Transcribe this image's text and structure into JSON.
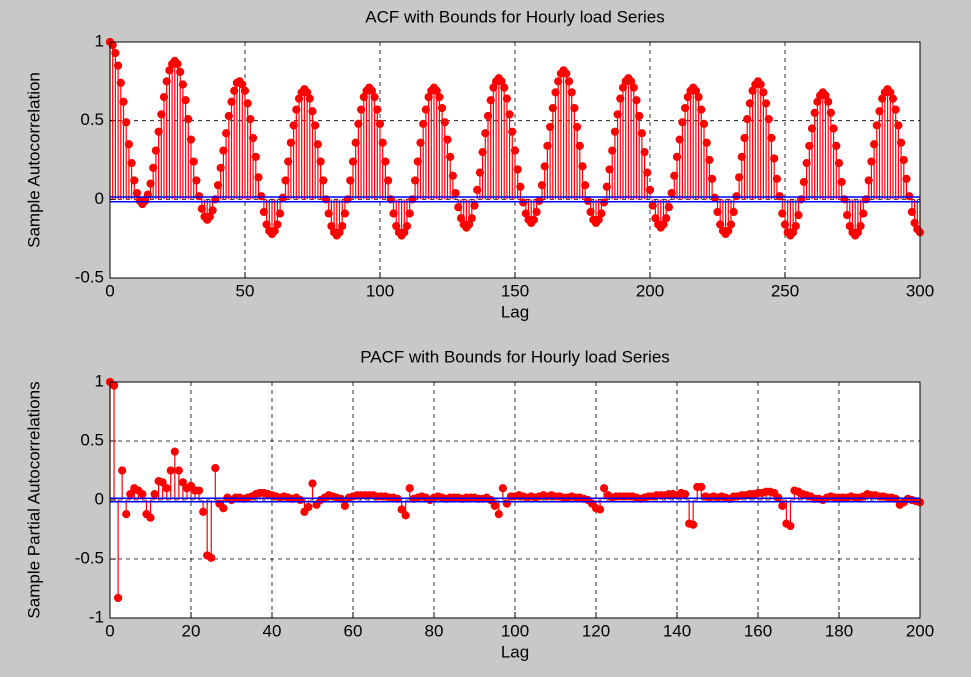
{
  "chart_data": [
    {
      "type": "stem",
      "title": "ACF with Bounds for Hourly load Series",
      "xlabel": "Lag",
      "ylabel": "Sample Autocorrelation",
      "color": "#ff0000",
      "bound_color": "#0000ff",
      "bounds": [
        0.015,
        -0.015
      ],
      "grid": true,
      "xlim": [
        0,
        300
      ],
      "ylim": [
        -0.5,
        1
      ],
      "xticks": [
        0,
        50,
        100,
        150,
        200,
        250,
        300
      ],
      "yticks": [
        -0.5,
        0,
        0.5,
        1
      ],
      "x": [
        0,
        1,
        2,
        3,
        4,
        5,
        6,
        7,
        8,
        9,
        10,
        11,
        12,
        13,
        14,
        15,
        16,
        17,
        18,
        19,
        20,
        21,
        22,
        23,
        24,
        25,
        26,
        27,
        28,
        29,
        30,
        31,
        32,
        33,
        34,
        35,
        36,
        37,
        38,
        39,
        40,
        41,
        42,
        43,
        44,
        45,
        46,
        47,
        48,
        49,
        50,
        51,
        52,
        53,
        54,
        55,
        56,
        57,
        58,
        59,
        60,
        61,
        62,
        63,
        64,
        65,
        66,
        67,
        68,
        69,
        70,
        71,
        72,
        73,
        74,
        75,
        76,
        77,
        78,
        79,
        80,
        81,
        82,
        83,
        84,
        85,
        86,
        87,
        88,
        89,
        90,
        91,
        92,
        93,
        94,
        95,
        96,
        97,
        98,
        99,
        100,
        101,
        102,
        103,
        104,
        105,
        106,
        107,
        108,
        109,
        110,
        111,
        112,
        113,
        114,
        115,
        116,
        117,
        118,
        119,
        120,
        121,
        122,
        123,
        124,
        125,
        126,
        127,
        128,
        129,
        130,
        131,
        132,
        133,
        134,
        135,
        136,
        137,
        138,
        139,
        140,
        141,
        142,
        143,
        144,
        145,
        146,
        147,
        148,
        149,
        150,
        151,
        152,
        153,
        154,
        155,
        156,
        157,
        158,
        159,
        160,
        161,
        162,
        163,
        164,
        165,
        166,
        167,
        168,
        169,
        170,
        171,
        172,
        173,
        174,
        175,
        176,
        177,
        178,
        179,
        180,
        181,
        182,
        183,
        184,
        185,
        186,
        187,
        188,
        189,
        190,
        191,
        192,
        193,
        194,
        195,
        196,
        197,
        198,
        199,
        200,
        201,
        202,
        203,
        204,
        205,
        206,
        207,
        208,
        209,
        210,
        211,
        212,
        213,
        214,
        215,
        216,
        217,
        218,
        219,
        220,
        221,
        222,
        223,
        224,
        225,
        226,
        227,
        228,
        229,
        230,
        231,
        232,
        233,
        234,
        235,
        236,
        237,
        238,
        239,
        240,
        241,
        242,
        243,
        244,
        245,
        246,
        247,
        248,
        249,
        250,
        251,
        252,
        253,
        254,
        255,
        256,
        257,
        258,
        259,
        260,
        261,
        262,
        263,
        264,
        265,
        266,
        267,
        268,
        269,
        270,
        271,
        272,
        273,
        274,
        275,
        276,
        277,
        278,
        279,
        280,
        281,
        282,
        283,
        284,
        285,
        286,
        287,
        288,
        289,
        290,
        291,
        292,
        293,
        294,
        295,
        296,
        297,
        298,
        299,
        300
      ],
      "values": [
        1,
        0.98,
        0.93,
        0.85,
        0.74,
        0.62,
        0.49,
        0.35,
        0.23,
        0.12,
        0.04,
        -0.01,
        -0.03,
        -0.01,
        0.03,
        0.1,
        0.2,
        0.31,
        0.43,
        0.54,
        0.65,
        0.75,
        0.82,
        0.86,
        0.88,
        0.86,
        0.81,
        0.73,
        0.63,
        0.51,
        0.38,
        0.24,
        0.12,
        0.02,
        -0.06,
        -0.11,
        -0.13,
        -0.11,
        -0.07,
        0,
        0.09,
        0.2,
        0.31,
        0.42,
        0.53,
        0.62,
        0.69,
        0.74,
        0.75,
        0.73,
        0.69,
        0.61,
        0.51,
        0.39,
        0.27,
        0.14,
        0.02,
        -0.08,
        -0.16,
        -0.2,
        -0.22,
        -0.2,
        -0.16,
        -0.09,
        0.01,
        0.12,
        0.24,
        0.36,
        0.47,
        0.57,
        0.64,
        0.68,
        0.7,
        0.68,
        0.64,
        0.56,
        0.47,
        0.35,
        0.24,
        0.12,
        0,
        -0.09,
        -0.17,
        -0.21,
        -0.23,
        -0.21,
        -0.17,
        -0.09,
        0,
        0.12,
        0.24,
        0.36,
        0.48,
        0.57,
        0.65,
        0.69,
        0.71,
        0.69,
        0.65,
        0.57,
        0.48,
        0.36,
        0.24,
        0.12,
        0,
        -0.09,
        -0.17,
        -0.21,
        -0.23,
        -0.21,
        -0.17,
        -0.09,
        0,
        0.12,
        0.24,
        0.36,
        0.48,
        0.57,
        0.65,
        0.69,
        0.71,
        0.69,
        0.65,
        0.58,
        0.49,
        0.38,
        0.27,
        0.15,
        0.04,
        -0.05,
        -0.12,
        -0.16,
        -0.18,
        -0.16,
        -0.12,
        -0.04,
        0.06,
        0.17,
        0.3,
        0.42,
        0.53,
        0.63,
        0.71,
        0.75,
        0.77,
        0.75,
        0.71,
        0.64,
        0.54,
        0.43,
        0.31,
        0.19,
        0.08,
        -0.02,
        -0.09,
        -0.13,
        -0.15,
        -0.13,
        -0.08,
        -0.01,
        0.09,
        0.21,
        0.34,
        0.46,
        0.58,
        0.68,
        0.75,
        0.8,
        0.82,
        0.8,
        0.75,
        0.68,
        0.58,
        0.46,
        0.34,
        0.21,
        0.09,
        -0.01,
        -0.08,
        -0.13,
        -0.15,
        -0.13,
        -0.09,
        -0.02,
        0.08,
        0.19,
        0.31,
        0.43,
        0.54,
        0.64,
        0.71,
        0.75,
        0.77,
        0.75,
        0.71,
        0.63,
        0.53,
        0.42,
        0.3,
        0.17,
        0.06,
        -0.04,
        -0.12,
        -0.16,
        -0.18,
        -0.16,
        -0.12,
        -0.05,
        0.04,
        0.15,
        0.27,
        0.38,
        0.49,
        0.58,
        0.65,
        0.69,
        0.71,
        0.69,
        0.65,
        0.57,
        0.48,
        0.36,
        0.25,
        0.13,
        0.01,
        -0.08,
        -0.16,
        -0.2,
        -0.22,
        -0.2,
        -0.16,
        -0.08,
        0.02,
        0.14,
        0.27,
        0.39,
        0.51,
        0.61,
        0.69,
        0.73,
        0.75,
        0.73,
        0.68,
        0.61,
        0.51,
        0.39,
        0.26,
        0.13,
        0.02,
        -0.09,
        -0.16,
        -0.21,
        -0.23,
        -0.21,
        -0.17,
        -0.1,
        0,
        0.11,
        0.23,
        0.34,
        0.45,
        0.55,
        0.62,
        0.66,
        0.68,
        0.66,
        0.62,
        0.55,
        0.45,
        0.34,
        0.23,
        0.11,
        0,
        -0.1,
        -0.17,
        -0.21,
        -0.23,
        -0.21,
        -0.17,
        -0.09,
        0,
        0.12,
        0.24,
        0.35,
        0.47,
        0.56,
        0.64,
        0.68,
        0.7,
        0.68,
        0.64,
        0.57,
        0.47,
        0.36,
        0.25,
        0.13,
        0.02,
        -0.08,
        -0.15,
        -0.19,
        -0.21
      ]
    },
    {
      "type": "stem",
      "title": "PACF with Bounds for Hourly load Series",
      "xlabel": "Lag",
      "ylabel": "Sample Partial Autocorrelations",
      "color": "#ff0000",
      "bound_color": "#0000ff",
      "bounds": [
        0.015,
        -0.015
      ],
      "grid": true,
      "xlim": [
        0,
        200
      ],
      "ylim": [
        -1,
        1
      ],
      "xticks": [
        0,
        20,
        40,
        60,
        80,
        100,
        120,
        140,
        160,
        180,
        200
      ],
      "yticks": [
        -1,
        -0.5,
        0,
        0.5,
        1
      ],
      "x": [
        0,
        1,
        2,
        3,
        4,
        5,
        6,
        7,
        8,
        9,
        10,
        11,
        12,
        13,
        14,
        15,
        16,
        17,
        18,
        19,
        20,
        21,
        22,
        23,
        24,
        25,
        26,
        27,
        28,
        29,
        30,
        31,
        32,
        33,
        34,
        35,
        36,
        37,
        38,
        39,
        40,
        41,
        42,
        43,
        44,
        45,
        46,
        47,
        48,
        49,
        50,
        51,
        52,
        53,
        54,
        55,
        56,
        57,
        58,
        59,
        60,
        61,
        62,
        63,
        64,
        65,
        66,
        67,
        68,
        69,
        70,
        71,
        72,
        73,
        74,
        75,
        76,
        77,
        78,
        79,
        80,
        81,
        82,
        83,
        84,
        85,
        86,
        87,
        88,
        89,
        90,
        91,
        92,
        93,
        94,
        95,
        96,
        97,
        98,
        99,
        100,
        101,
        102,
        103,
        104,
        105,
        106,
        107,
        108,
        109,
        110,
        111,
        112,
        113,
        114,
        115,
        116,
        117,
        118,
        119,
        120,
        121,
        122,
        123,
        124,
        125,
        126,
        127,
        128,
        129,
        130,
        131,
        132,
        133,
        134,
        135,
        136,
        137,
        138,
        139,
        140,
        141,
        142,
        143,
        144,
        145,
        146,
        147,
        148,
        149,
        150,
        151,
        152,
        153,
        154,
        155,
        156,
        157,
        158,
        159,
        160,
        161,
        162,
        163,
        164,
        165,
        166,
        167,
        168,
        169,
        170,
        171,
        172,
        173,
        174,
        175,
        176,
        177,
        178,
        179,
        180,
        181,
        182,
        183,
        184,
        185,
        186,
        187,
        188,
        189,
        190,
        191,
        192,
        193,
        194,
        195,
        196,
        197,
        198,
        199,
        200
      ],
      "values": [
        1,
        0.97,
        -0.83,
        0.25,
        -0.12,
        0.05,
        0.1,
        0.08,
        0.05,
        -0.12,
        -0.15,
        0.05,
        0.16,
        0.15,
        0.1,
        0.25,
        0.41,
        0.25,
        0.15,
        0.1,
        0.12,
        0.08,
        0.08,
        -0.1,
        -0.47,
        -0.49,
        0.27,
        -0.03,
        -0.07,
        0.02,
        0,
        0.02,
        0.02,
        0.01,
        0.02,
        0.03,
        0.05,
        0.06,
        0.06,
        0.05,
        0.04,
        0.03,
        0.02,
        0.03,
        0.02,
        0.01,
        0.02,
        0,
        -0.1,
        -0.06,
        0.14,
        -0.04,
        0,
        0.02,
        0.04,
        0.03,
        0.02,
        0.01,
        -0.05,
        0.02,
        0.03,
        0.04,
        0.04,
        0.04,
        0.04,
        0.04,
        0.03,
        0.03,
        0.03,
        0.02,
        0.02,
        0.01,
        -0.08,
        -0.13,
        0.1,
        0.01,
        0.02,
        0.03,
        0.02,
        0,
        0.02,
        0.03,
        0.02,
        0.01,
        0.02,
        0.02,
        0.02,
        0.01,
        0.02,
        0.02,
        0.02,
        0.01,
        0.01,
        0.02,
        0,
        -0.05,
        -0.12,
        0.1,
        -0.03,
        0.03,
        0.03,
        0.04,
        0.03,
        0.02,
        0.03,
        0.02,
        0.03,
        0.04,
        0.03,
        0.04,
        0.03,
        0.03,
        0.02,
        0.02,
        0.03,
        0.02,
        0.02,
        0.01,
        0,
        -0.03,
        -0.07,
        -0.08,
        0.1,
        0.04,
        0.02,
        0.03,
        0.03,
        0.03,
        0.03,
        0.03,
        0.02,
        0.01,
        0.02,
        0.03,
        0.03,
        0.04,
        0.04,
        0.04,
        0.05,
        0.05,
        0.04,
        0.06,
        0.05,
        -0.2,
        -0.21,
        0.11,
        0.11,
        0.03,
        0.02,
        0.03,
        0.02,
        0.03,
        0.02,
        0.01,
        0.03,
        0.03,
        0.04,
        0.04,
        0.05,
        0.05,
        0.06,
        0.06,
        0.07,
        0.07,
        0.06,
        0.02,
        -0.05,
        -0.2,
        -0.22,
        0.08,
        0.07,
        0.05,
        0.04,
        0.03,
        0.01,
        0.01,
        0,
        0.02,
        0.03,
        0.02,
        0.02,
        0.02,
        0.02,
        0.03,
        0.02,
        0.02,
        0.03,
        0.05,
        0.04,
        0.04,
        0.03,
        0.03,
        0.02,
        0.02,
        0.01,
        -0.04,
        -0.02,
        0.01,
        0,
        -0.01,
        -0.02
      ]
    }
  ]
}
